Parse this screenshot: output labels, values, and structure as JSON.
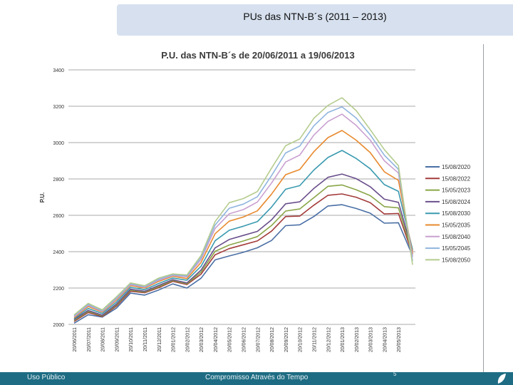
{
  "slide": {
    "title": "PUs das NTN-B´s (2011 – 2013)",
    "footer_left": "Uso Público",
    "footer_center": "Compromisso Através do Tempo",
    "page_number": "5"
  },
  "colors": {
    "header_bg": "#d6e0ee",
    "footer_bg": "#1e6c83",
    "chart_title": "#3a3a3a"
  },
  "chart_data": {
    "type": "line",
    "title": "P.U. das NTN-B´s de 20/06/2011 a 19/06/2013",
    "ylabel": "P.U.",
    "xlabel": "",
    "ylim": [
      2000,
      3400
    ],
    "yticks": [
      2000,
      2200,
      2400,
      2600,
      2800,
      3000,
      3200,
      3400
    ],
    "ytick_labels": [
      "2000",
      "2200",
      "2400",
      "2600",
      "2800",
      "3000",
      "3200",
      "3400"
    ],
    "grid": true,
    "legend_position": "right",
    "x": [
      "20/06/2011",
      "20/07/2011",
      "20/08/2011",
      "20/09/2011",
      "20/10/2011",
      "20/11/2011",
      "20/12/2011",
      "20/01/2012",
      "20/02/2012",
      "20/03/2012",
      "20/04/2012",
      "20/05/2012",
      "20/06/2012",
      "20/07/2012",
      "20/08/2012",
      "20/09/2012",
      "20/10/2012",
      "20/11/2012",
      "20/12/2012",
      "20/01/2013",
      "20/02/2013",
      "20/03/2013",
      "20/04/2013",
      "20/05/2013",
      "19/06/2013"
    ],
    "xtick_labels": [
      "20/06/2011",
      "20/07/2011",
      "20/08/2011",
      "20/09/2011",
      "20/10/2011",
      "20/11/2011",
      "20/12/2011",
      "20/01/2012",
      "20/02/2012",
      "20/03/2012",
      "20/04/2012",
      "20/05/2012",
      "20/06/2012",
      "20/07/2012",
      "20/08/2012",
      "20/09/2012",
      "20/10/2012",
      "20/11/2012",
      "20/12/2012",
      "20/01/2013",
      "20/02/2013",
      "20/03/2013",
      "20/04/2013",
      "20/05/2013"
    ],
    "series": [
      {
        "name": "15/08/2020",
        "color": "#4a6fa5",
        "values": [
          2030,
          2040,
          2035,
          2110,
          2150,
          2170,
          2200,
          2200,
          2220,
          2250,
          2340,
          2400,
          2380,
          2420,
          2480,
          2520,
          2560,
          2600,
          2630,
          2680,
          2630,
          2600,
          2580,
          2540,
          2380
        ]
      },
      {
        "name": "15/08/2022",
        "color": "#a33b3a",
        "values": [
          2040,
          2050,
          2040,
          2120,
          2160,
          2185,
          2210,
          2215,
          2240,
          2270,
          2370,
          2440,
          2420,
          2460,
          2530,
          2570,
          2610,
          2660,
          2690,
          2740,
          2690,
          2660,
          2630,
          2590,
          2390
        ]
      },
      {
        "name": "15/05/2023",
        "color": "#8aa648",
        "values": [
          2045,
          2055,
          2045,
          2125,
          2165,
          2190,
          2215,
          2220,
          2245,
          2280,
          2390,
          2460,
          2440,
          2485,
          2560,
          2600,
          2650,
          2700,
          2740,
          2790,
          2730,
          2700,
          2670,
          2620,
          2400
        ]
      },
      {
        "name": "15/08/2024",
        "color": "#6a4f8c",
        "values": [
          2050,
          2060,
          2050,
          2130,
          2170,
          2195,
          2220,
          2225,
          2250,
          2290,
          2410,
          2490,
          2470,
          2515,
          2590,
          2640,
          2690,
          2750,
          2790,
          2850,
          2790,
          2750,
          2710,
          2650,
          2410
        ]
      },
      {
        "name": "15/08/2030",
        "color": "#3a9ab0",
        "values": [
          2055,
          2070,
          2060,
          2140,
          2180,
          2205,
          2230,
          2235,
          2265,
          2310,
          2450,
          2540,
          2520,
          2570,
          2660,
          2720,
          2780,
          2850,
          2900,
          2980,
          2900,
          2850,
          2790,
          2710,
          2420
        ]
      },
      {
        "name": "15/05/2035",
        "color": "#e88a2e",
        "values": [
          2060,
          2080,
          2070,
          2150,
          2190,
          2215,
          2240,
          2245,
          2275,
          2330,
          2490,
          2590,
          2570,
          2630,
          2730,
          2800,
          2870,
          2950,
          3010,
          3090,
          3000,
          2940,
          2860,
          2770,
          2400
        ]
      },
      {
        "name": "15/08/2040",
        "color": "#c9a0d0",
        "values": [
          2065,
          2085,
          2075,
          2155,
          2195,
          2220,
          2245,
          2250,
          2285,
          2345,
          2520,
          2630,
          2610,
          2680,
          2790,
          2870,
          2950,
          3040,
          3100,
          3180,
          3080,
          3010,
          2920,
          2810,
          2380
        ]
      },
      {
        "name": "15/05/2045",
        "color": "#8fb4de",
        "values": [
          2070,
          2090,
          2080,
          2160,
          2200,
          2225,
          2250,
          2255,
          2290,
          2355,
          2540,
          2660,
          2640,
          2710,
          2830,
          2920,
          3000,
          3090,
          3150,
          3220,
          3120,
          3040,
          2950,
          2830,
          2360
        ]
      },
      {
        "name": "15/08/2050",
        "color": "#b5cc8e",
        "values": [
          2075,
          2095,
          2085,
          2165,
          2205,
          2230,
          2255,
          2260,
          2295,
          2365,
          2560,
          2690,
          2670,
          2740,
          2870,
          2960,
          3040,
          3130,
          3190,
          3270,
          3160,
          3070,
          2980,
          2850,
          2340
        ]
      }
    ]
  }
}
